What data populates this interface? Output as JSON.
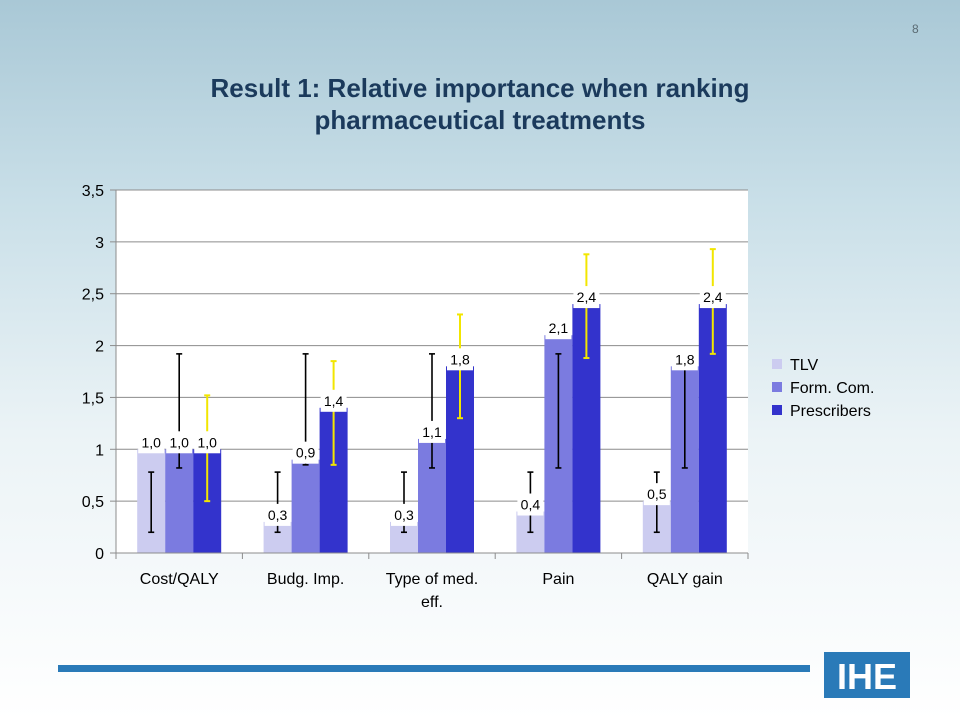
{
  "page_number": "8",
  "title_line1": "Result 1: Relative importance when ranking",
  "title_line2": "pharmaceutical treatments",
  "logo_text": "IHE",
  "colors": {
    "tlv": "#ccccf0",
    "form_com": "#7b7be0",
    "prescribers": "#3333cc",
    "error_black": "#000000",
    "error_yellow": "#f2e600",
    "footer_bar": "#2a7ab8"
  },
  "chart_data": {
    "type": "bar",
    "categories": [
      [
        "Cost/QALY"
      ],
      [
        "Budg. Imp."
      ],
      [
        "Type of med.",
        "eff."
      ],
      [
        "Pain"
      ],
      [
        "QALY gain"
      ]
    ],
    "ylim": [
      0,
      3.5
    ],
    "yticks": [
      0,
      0.5,
      1,
      1.5,
      2,
      2.5,
      3,
      3.5
    ],
    "ytick_labels": [
      "0",
      "0,5",
      "1",
      "1,5",
      "2",
      "2,5",
      "3",
      "3,5"
    ],
    "grid": true,
    "legend_position": "right",
    "series": [
      {
        "name": "TLV",
        "values": [
          1.0,
          0.3,
          0.3,
          0.4,
          0.5
        ],
        "labels": [
          "1,0",
          "0,3",
          "0,3",
          "0,4",
          "0,5"
        ],
        "error_low": [
          0.2,
          0.2,
          0.2,
          0.2,
          0.2
        ],
        "error_high": [
          0.78,
          0.78,
          0.78,
          0.78,
          0.78
        ],
        "error_color": "black"
      },
      {
        "name": "Form. Com.",
        "values": [
          1.0,
          0.9,
          1.1,
          2.1,
          1.8
        ],
        "labels": [
          "1,0",
          "0,9",
          "1,1",
          "2,1",
          "1,8"
        ],
        "error_low": [
          0.82,
          0.85,
          0.82,
          0.82,
          0.82
        ],
        "error_high": [
          1.92,
          1.92,
          1.92,
          1.92,
          1.78
        ],
        "error_color": "black"
      },
      {
        "name": "Prescribers",
        "values": [
          1.0,
          1.4,
          1.8,
          2.4,
          2.4
        ],
        "labels": [
          "1,0",
          "1,4",
          "1,8",
          "2,4",
          "2,4"
        ],
        "error_low": [
          0.5,
          0.85,
          1.3,
          1.88,
          1.92
        ],
        "error_high": [
          1.52,
          1.85,
          2.3,
          2.88,
          2.93
        ],
        "error_color": "yellow"
      }
    ]
  }
}
